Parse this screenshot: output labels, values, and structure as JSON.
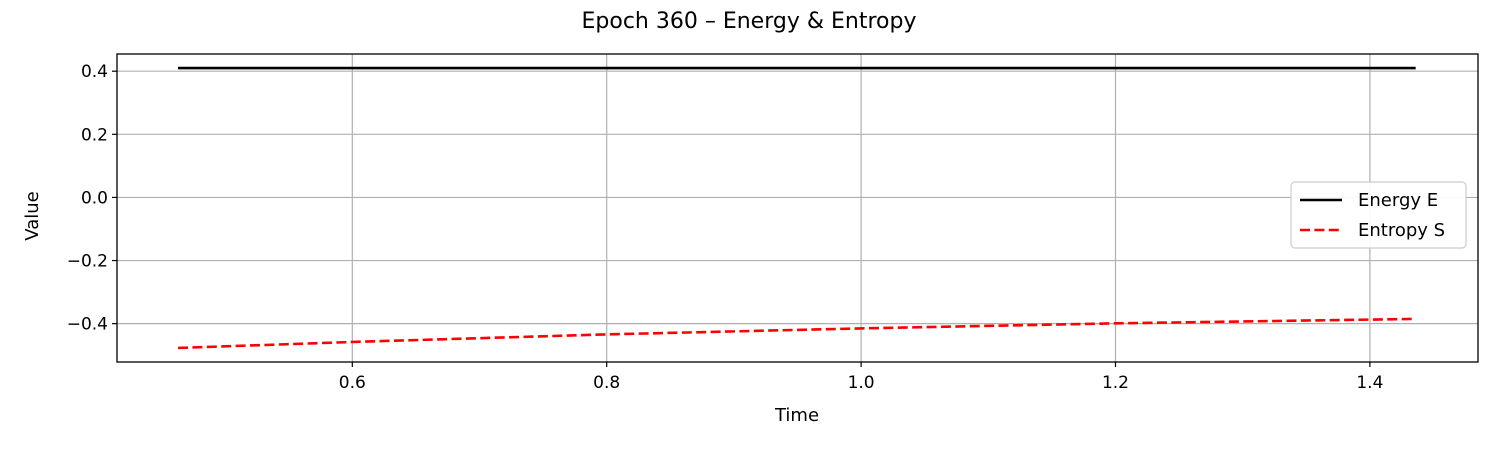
{
  "chart_data": {
    "type": "line",
    "title": "Epoch 360 – Energy & Entropy",
    "xlabel": "Time",
    "ylabel": "Value",
    "xlim": [
      0.415,
      1.485
    ],
    "ylim": [
      -0.5215,
      0.4545
    ],
    "xticks": [
      {
        "value": 0.6,
        "label": "0.6"
      },
      {
        "value": 0.8,
        "label": "0.8"
      },
      {
        "value": 1.0,
        "label": "1.0"
      },
      {
        "value": 1.2,
        "label": "1.2"
      },
      {
        "value": 1.4,
        "label": "1.4"
      }
    ],
    "yticks": [
      {
        "value": 0.4,
        "label": "0.4"
      },
      {
        "value": 0.2,
        "label": "0.2"
      },
      {
        "value": 0.0,
        "label": "0.0"
      },
      {
        "value": -0.2,
        "label": "−0.2"
      },
      {
        "value": -0.4,
        "label": "−0.4"
      }
    ],
    "grid": true,
    "legend_position": "center-right",
    "series": [
      {
        "name": "Energy E",
        "color": "#000000",
        "style": "solid",
        "x": [
          0.463,
          0.6,
          0.8,
          1.0,
          1.2,
          1.436
        ],
        "y": [
          0.41,
          0.41,
          0.41,
          0.41,
          0.41,
          0.41
        ]
      },
      {
        "name": "Entropy S",
        "color": "#ff0000",
        "style": "dashed",
        "x": [
          0.463,
          0.6,
          0.8,
          1.0,
          1.2,
          1.436
        ],
        "y": [
          -0.477,
          -0.458,
          -0.434,
          -0.415,
          -0.399,
          -0.385
        ]
      }
    ]
  }
}
